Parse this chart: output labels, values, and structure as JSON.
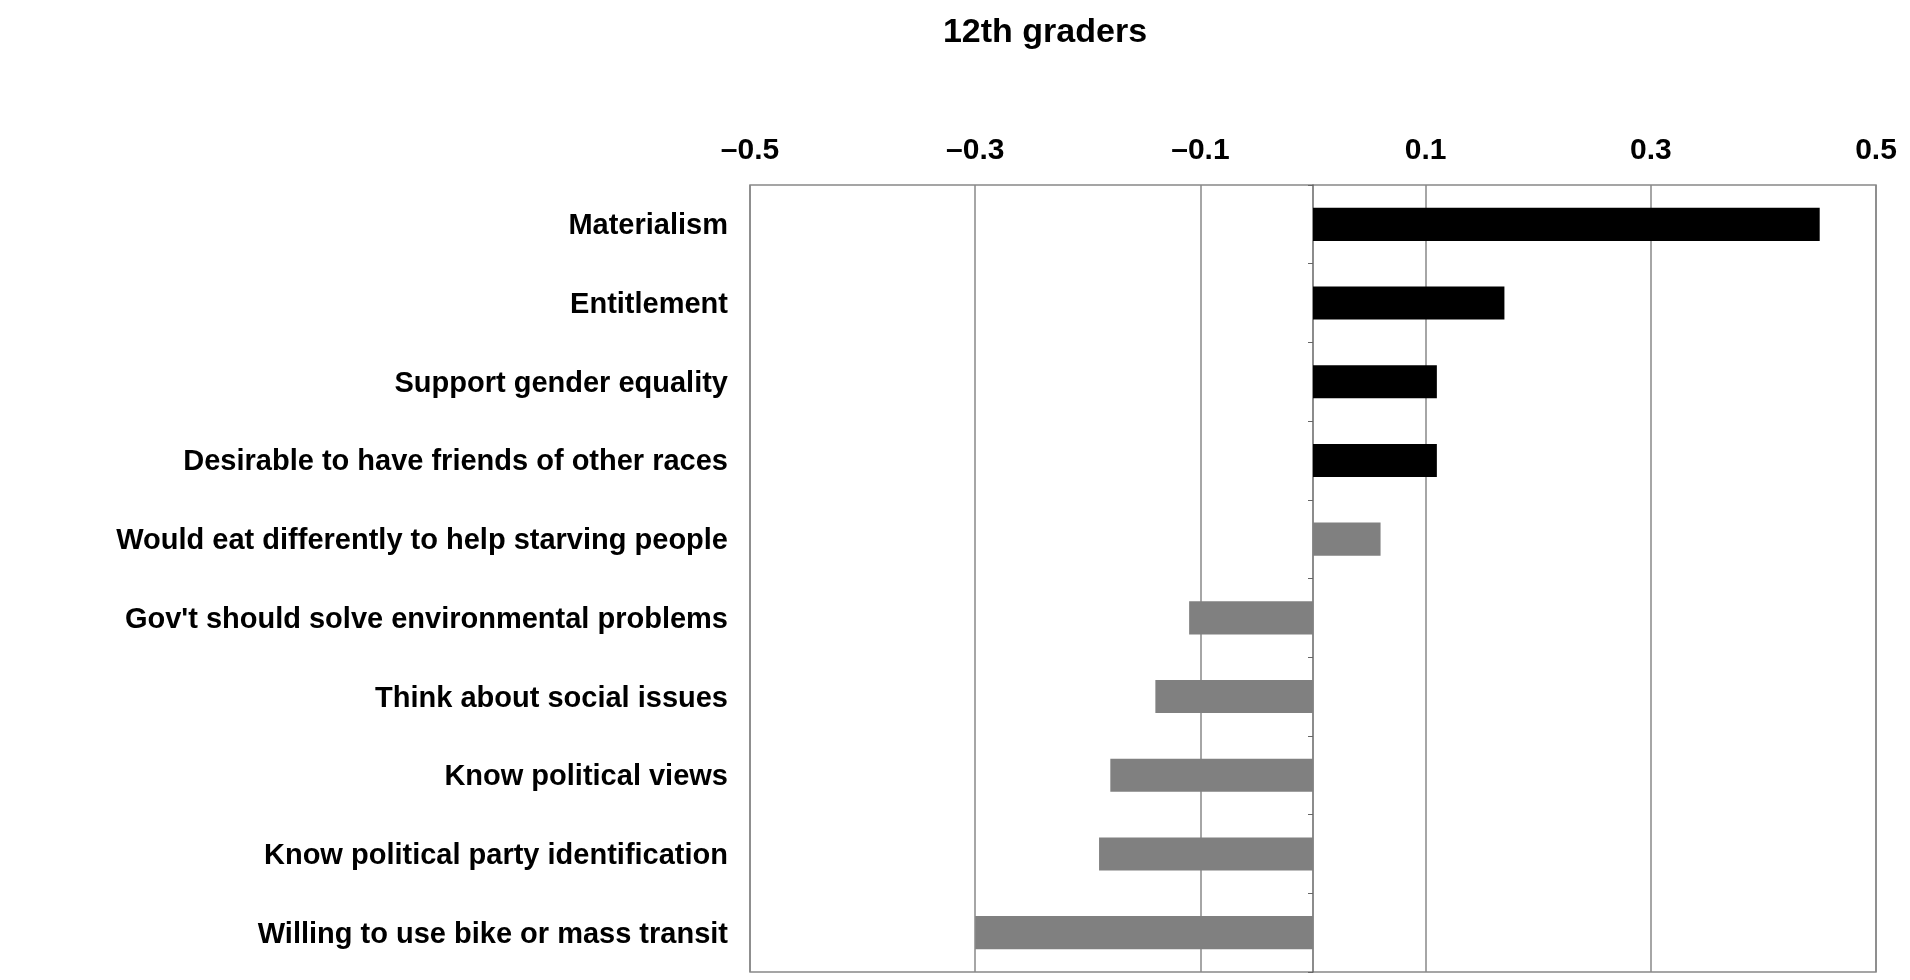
{
  "chart_data": {
    "type": "bar",
    "orientation": "horizontal",
    "title": "12th graders",
    "categories": [
      "Materialism",
      "Entitlement",
      "Support gender equality",
      "Desirable to have friends of other races",
      "Would eat differently to help starving people",
      "Gov't should solve environmental problems",
      "Think about social issues",
      "Know political views",
      "Know political party identification",
      "Willing to use bike or mass transit"
    ],
    "values": [
      0.45,
      0.17,
      0.11,
      0.11,
      0.06,
      -0.11,
      -0.14,
      -0.18,
      -0.19,
      -0.3
    ],
    "colors": [
      "#000000",
      "#000000",
      "#000000",
      "#000000",
      "#808080",
      "#808080",
      "#808080",
      "#808080",
      "#808080",
      "#808080"
    ],
    "xlim": [
      -0.5,
      0.5
    ],
    "xticks": [
      {
        "value": -0.5,
        "label": "–0.5"
      },
      {
        "value": -0.3,
        "label": "–0.3"
      },
      {
        "value": -0.1,
        "label": "–0.1"
      },
      0.1,
      0.3,
      0.5
    ],
    "grid": "x"
  }
}
